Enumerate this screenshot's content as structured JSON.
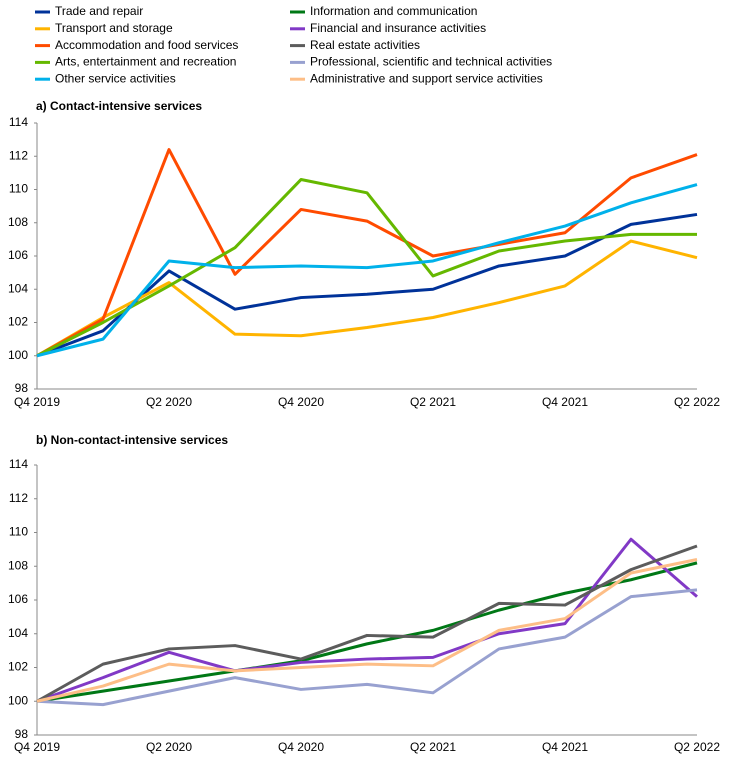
{
  "chart_data": [
    {
      "type": "line",
      "title": "a) Contact-intensive services",
      "categories": [
        "Q4 2019",
        null,
        "Q2 2020",
        null,
        "Q4 2020",
        null,
        "Q2 2021",
        null,
        "Q4 2021",
        null,
        "Q2 2022"
      ],
      "ylim": [
        98,
        114
      ],
      "yticks": [
        98,
        100,
        102,
        104,
        106,
        108,
        110,
        112,
        114
      ],
      "series": [
        {
          "name": "Trade and repair",
          "color": "#003299",
          "values": [
            100,
            101.5,
            105.1,
            102.8,
            103.5,
            103.7,
            104.0,
            105.4,
            106.0,
            107.9,
            108.5
          ]
        },
        {
          "name": "Transport and storage",
          "color": "#ffb400",
          "values": [
            100,
            102.3,
            104.4,
            101.3,
            101.2,
            101.7,
            102.3,
            103.2,
            104.2,
            106.9,
            105.9
          ]
        },
        {
          "name": "Accommodation and food services",
          "color": "#ff4b00",
          "values": [
            100,
            102.2,
            112.4,
            104.9,
            108.8,
            108.1,
            106.0,
            106.7,
            107.4,
            110.7,
            112.1
          ]
        },
        {
          "name": "Arts, entertainment and recreation",
          "color": "#65b800",
          "values": [
            100,
            102.0,
            104.2,
            106.5,
            110.6,
            109.8,
            104.8,
            106.3,
            106.9,
            107.3,
            107.3
          ]
        },
        {
          "name": "Other service activities",
          "color": "#00b1ea",
          "values": [
            100,
            101.0,
            105.7,
            105.3,
            105.4,
            105.3,
            105.7,
            106.8,
            107.8,
            109.2,
            110.3
          ]
        }
      ]
    },
    {
      "type": "line",
      "title": "b) Non-contact-intensive services",
      "categories": [
        "Q4 2019",
        null,
        "Q2 2020",
        null,
        "Q4 2020",
        null,
        "Q2 2021",
        null,
        "Q4 2021",
        null,
        "Q2 2022"
      ],
      "ylim": [
        98,
        114
      ],
      "yticks": [
        98,
        100,
        102,
        104,
        106,
        108,
        110,
        112,
        114
      ],
      "series": [
        {
          "name": "Information and communication",
          "color": "#007816",
          "values": [
            100,
            100.6,
            101.2,
            101.8,
            102.4,
            103.4,
            104.2,
            105.4,
            106.4,
            107.2,
            108.2
          ]
        },
        {
          "name": "Financial and insurance activities",
          "color": "#8139c6",
          "values": [
            100,
            101.4,
            102.9,
            101.8,
            102.3,
            102.5,
            102.6,
            104.0,
            104.6,
            109.6,
            106.2
          ]
        },
        {
          "name": "Real estate activities",
          "color": "#5c5c5c",
          "values": [
            100,
            102.2,
            103.1,
            103.3,
            102.5,
            103.9,
            103.8,
            105.8,
            105.7,
            107.8,
            109.2
          ]
        },
        {
          "name": "Professional, scientific and technical activities",
          "color": "#98a1d0",
          "values": [
            100,
            99.8,
            100.6,
            101.4,
            100.7,
            101.0,
            100.5,
            103.1,
            103.8,
            106.2,
            106.6
          ]
        },
        {
          "name": "Administrative and support service activities",
          "color": "#fdbe87",
          "values": [
            100,
            100.9,
            102.2,
            101.8,
            102.0,
            102.2,
            102.1,
            104.2,
            104.9,
            107.6,
            108.4
          ]
        }
      ]
    }
  ]
}
